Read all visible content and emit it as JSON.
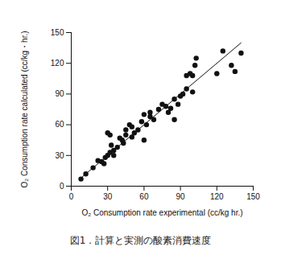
{
  "chart_data": {
    "type": "scatter",
    "title": "図1．計算と実測の酸素消費速度",
    "x_label": "O₂ Consumption rate experimental (cc/kg hr.)",
    "y_label": "O₂ Consumption rate calculated (cc/kg・hr.)",
    "xlim": [
      0,
      150
    ],
    "ylim": [
      0,
      150
    ],
    "xticks": [
      0,
      30,
      60,
      90,
      120,
      150
    ],
    "yticks": [
      0,
      30,
      60,
      90,
      120,
      150
    ],
    "grid": false,
    "series": [
      {
        "type": "scatter",
        "color": "#111111",
        "marker": "circle",
        "x": [
          8,
          12,
          18,
          22,
          25,
          27,
          28,
          30,
          30,
          32,
          32,
          33,
          35,
          35,
          38,
          40,
          42,
          43,
          45,
          45,
          48,
          50,
          50,
          52,
          55,
          58,
          60,
          60,
          62,
          65,
          65,
          68,
          72,
          75,
          78,
          80,
          82,
          85,
          85,
          88,
          90,
          92,
          95,
          95,
          98,
          100,
          100,
          102,
          103,
          120,
          125,
          132,
          135,
          140
        ],
        "values": [
          7,
          12,
          18,
          25,
          24,
          22,
          28,
          30,
          52,
          50,
          33,
          40,
          35,
          30,
          38,
          47,
          45,
          42,
          55,
          50,
          60,
          48,
          58,
          52,
          55,
          63,
          70,
          45,
          60,
          68,
          72,
          65,
          75,
          80,
          78,
          72,
          76,
          65,
          85,
          80,
          88,
          90,
          108,
          95,
          110,
          108,
          92,
          118,
          125,
          110,
          132,
          118,
          112,
          130
        ]
      },
      {
        "type": "line",
        "color": "#111111",
        "line_style": "solid",
        "x": [
          8,
          140
        ],
        "values": [
          8,
          140
        ]
      }
    ]
  }
}
